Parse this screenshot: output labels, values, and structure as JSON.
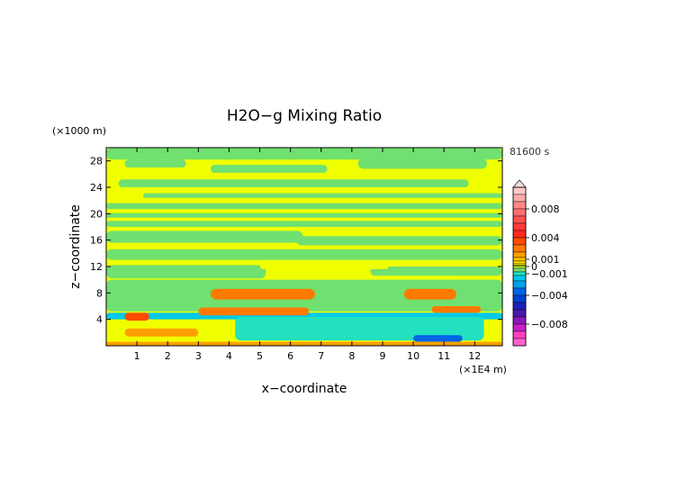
{
  "chart_data": {
    "type": "heatmap",
    "title": "H2O−g Mixing Ratio",
    "xlabel": "x−coordinate",
    "ylabel": "z−coordinate",
    "x_unit": "(×1E4 m)",
    "y_unit": "(×1000 m)",
    "time_label": "81600 s",
    "xlim": [
      0,
      12.9
    ],
    "ylim": [
      0,
      30
    ],
    "x_ticks": [
      {
        "value": 1,
        "label": "1"
      },
      {
        "value": 2,
        "label": "2"
      },
      {
        "value": 3,
        "label": "3"
      },
      {
        "value": 4,
        "label": "4"
      },
      {
        "value": 5,
        "label": "5"
      },
      {
        "value": 6,
        "label": "6"
      },
      {
        "value": 7,
        "label": "7"
      },
      {
        "value": 8,
        "label": "8"
      },
      {
        "value": 9,
        "label": "9"
      },
      {
        "value": 10,
        "label": "10"
      },
      {
        "value": 11,
        "label": "11"
      },
      {
        "value": 12,
        "label": "12"
      }
    ],
    "y_ticks": [
      {
        "value": 4,
        "label": "4"
      },
      {
        "value": 8,
        "label": "8"
      },
      {
        "value": 12,
        "label": "12"
      },
      {
        "value": 16,
        "label": "16"
      },
      {
        "value": 20,
        "label": "20"
      },
      {
        "value": 24,
        "label": "24"
      },
      {
        "value": 28,
        "label": "28"
      }
    ],
    "colorbar": {
      "segments": [
        {
          "value": 0.0105,
          "color": "#ffc8c8"
        },
        {
          "value": 0.0095,
          "color": "#ffaaaa"
        },
        {
          "value": 0.0085,
          "color": "#ff8888"
        },
        {
          "value": 0.0075,
          "color": "#ff6e6e"
        },
        {
          "value": 0.0065,
          "color": "#ff5050"
        },
        {
          "value": 0.0055,
          "color": "#ff3a3a"
        },
        {
          "value": 0.0045,
          "color": "#ff2a1a"
        },
        {
          "value": 0.0035,
          "color": "#ff4a00"
        },
        {
          "value": 0.0025,
          "color": "#ff7a00"
        },
        {
          "value": 0.0015,
          "color": "#ff9f00"
        },
        {
          "value": 0.001,
          "color": "#ffc000"
        },
        {
          "value": 0.0005,
          "color": "#ffe000"
        },
        {
          "value": 0.00025,
          "color": "#ffff00"
        },
        {
          "value": 0.0001,
          "color": "#f0ff00"
        },
        {
          "value": 0,
          "color": "#b8f040"
        },
        {
          "value": -0.0005,
          "color": "#70e070"
        },
        {
          "value": -0.001,
          "color": "#22e0c0"
        },
        {
          "value": -0.0015,
          "color": "#00c8e8"
        },
        {
          "value": -0.0025,
          "color": "#00a0f0"
        },
        {
          "value": -0.0035,
          "color": "#0064e8"
        },
        {
          "value": -0.0045,
          "color": "#0040d0"
        },
        {
          "value": -0.0055,
          "color": "#2020b8"
        },
        {
          "value": -0.0065,
          "color": "#4a18b0"
        },
        {
          "value": -0.0075,
          "color": "#8a18b8"
        },
        {
          "value": -0.0085,
          "color": "#c820c8"
        },
        {
          "value": -0.0095,
          "color": "#ff40c0"
        },
        {
          "value": -0.0105,
          "color": "#ff60d0"
        }
      ],
      "labels": [
        {
          "value": 0.008,
          "label": "0.008"
        },
        {
          "value": 0.004,
          "label": "0.004"
        },
        {
          "value": 0.001,
          "label": "0.001"
        },
        {
          "value": 0,
          "label": "0"
        },
        {
          "value": -0.001,
          "label": "−0.001"
        },
        {
          "value": -0.004,
          "label": "−0.004"
        },
        {
          "value": -0.008,
          "label": "−0.008"
        }
      ]
    },
    "field": {
      "background": 0.00015,
      "bands": [
        {
          "z": [
            28.2,
            30
          ],
          "x": [
            0,
            12.9
          ],
          "value": -0.0003
        },
        {
          "z": [
            27.0,
            28.2
          ],
          "x": [
            0.6,
            2.6
          ],
          "value": -0.0003
        },
        {
          "z": [
            26.2,
            27.4
          ],
          "x": [
            3.4,
            7.2
          ],
          "value": -0.0003
        },
        {
          "z": [
            26.8,
            28.4
          ],
          "x": [
            8.2,
            12.4
          ],
          "value": -0.0003
        },
        {
          "z": [
            24.0,
            25.2
          ],
          "x": [
            0.4,
            11.8
          ],
          "value": -0.0003
        },
        {
          "z": [
            22.4,
            23.1
          ],
          "x": [
            1.2,
            12.9
          ],
          "value": -0.0003
        },
        {
          "z": [
            20.7,
            21.6
          ],
          "x": [
            0,
            12.9
          ],
          "value": -0.0003
        },
        {
          "z": [
            19.4,
            20.1
          ],
          "x": [
            0,
            12.9
          ],
          "value": -0.0003
        },
        {
          "z": [
            18.0,
            18.9
          ],
          "x": [
            0,
            12.9
          ],
          "value": -0.0003
        },
        {
          "z": [
            15.6,
            17.4
          ],
          "x": [
            0,
            6.4
          ],
          "value": -0.0003
        },
        {
          "z": [
            15.2,
            16.6
          ],
          "x": [
            6.2,
            12.9
          ],
          "value": -0.0003
        },
        {
          "z": [
            13.0,
            14.6
          ],
          "x": [
            0,
            12.9
          ],
          "value": -0.0003
        },
        {
          "z": [
            10.2,
            12.2
          ],
          "x": [
            0,
            5.2
          ],
          "value": -0.0003
        },
        {
          "z": [
            10.6,
            12.0
          ],
          "x": [
            8.6,
            12.9
          ],
          "value": -0.0003
        },
        {
          "z": [
            5.2,
            10.0
          ],
          "x": [
            0,
            12.9
          ],
          "value": -0.0003
        },
        {
          "z": [
            11.6,
            12.6
          ],
          "x": [
            5.0,
            9.2
          ],
          "value": 0.00015
        },
        {
          "z": [
            7.0,
            8.6
          ],
          "x": [
            3.4,
            6.8
          ],
          "value": 0.0025
        },
        {
          "z": [
            7.0,
            8.6
          ],
          "x": [
            9.7,
            11.4
          ],
          "value": 0.0025
        },
        {
          "z": [
            4.0,
            5.0
          ],
          "x": [
            0,
            12.9
          ],
          "value": -0.0016
        },
        {
          "z": [
            0.8,
            4.4
          ],
          "x": [
            4.2,
            12.3
          ],
          "value": -0.0011
        },
        {
          "z": [
            4.6,
            5.8
          ],
          "x": [
            3.0,
            6.6
          ],
          "value": 0.0028
        },
        {
          "z": [
            3.8,
            5.0
          ],
          "x": [
            0.6,
            1.4
          ],
          "value": 0.0032
        },
        {
          "z": [
            1.4,
            2.6
          ],
          "x": [
            0.6,
            3.0
          ],
          "value": 0.0018
        },
        {
          "z": [
            5.0,
            6.0
          ],
          "x": [
            10.6,
            12.2
          ],
          "value": 0.0022
        },
        {
          "z": [
            0.6,
            1.6
          ],
          "x": [
            10.0,
            11.6
          ],
          "value": -0.0036
        },
        {
          "z": [
            0,
            0.6
          ],
          "x": [
            0,
            12.9
          ],
          "value": 0.0019
        }
      ]
    }
  }
}
